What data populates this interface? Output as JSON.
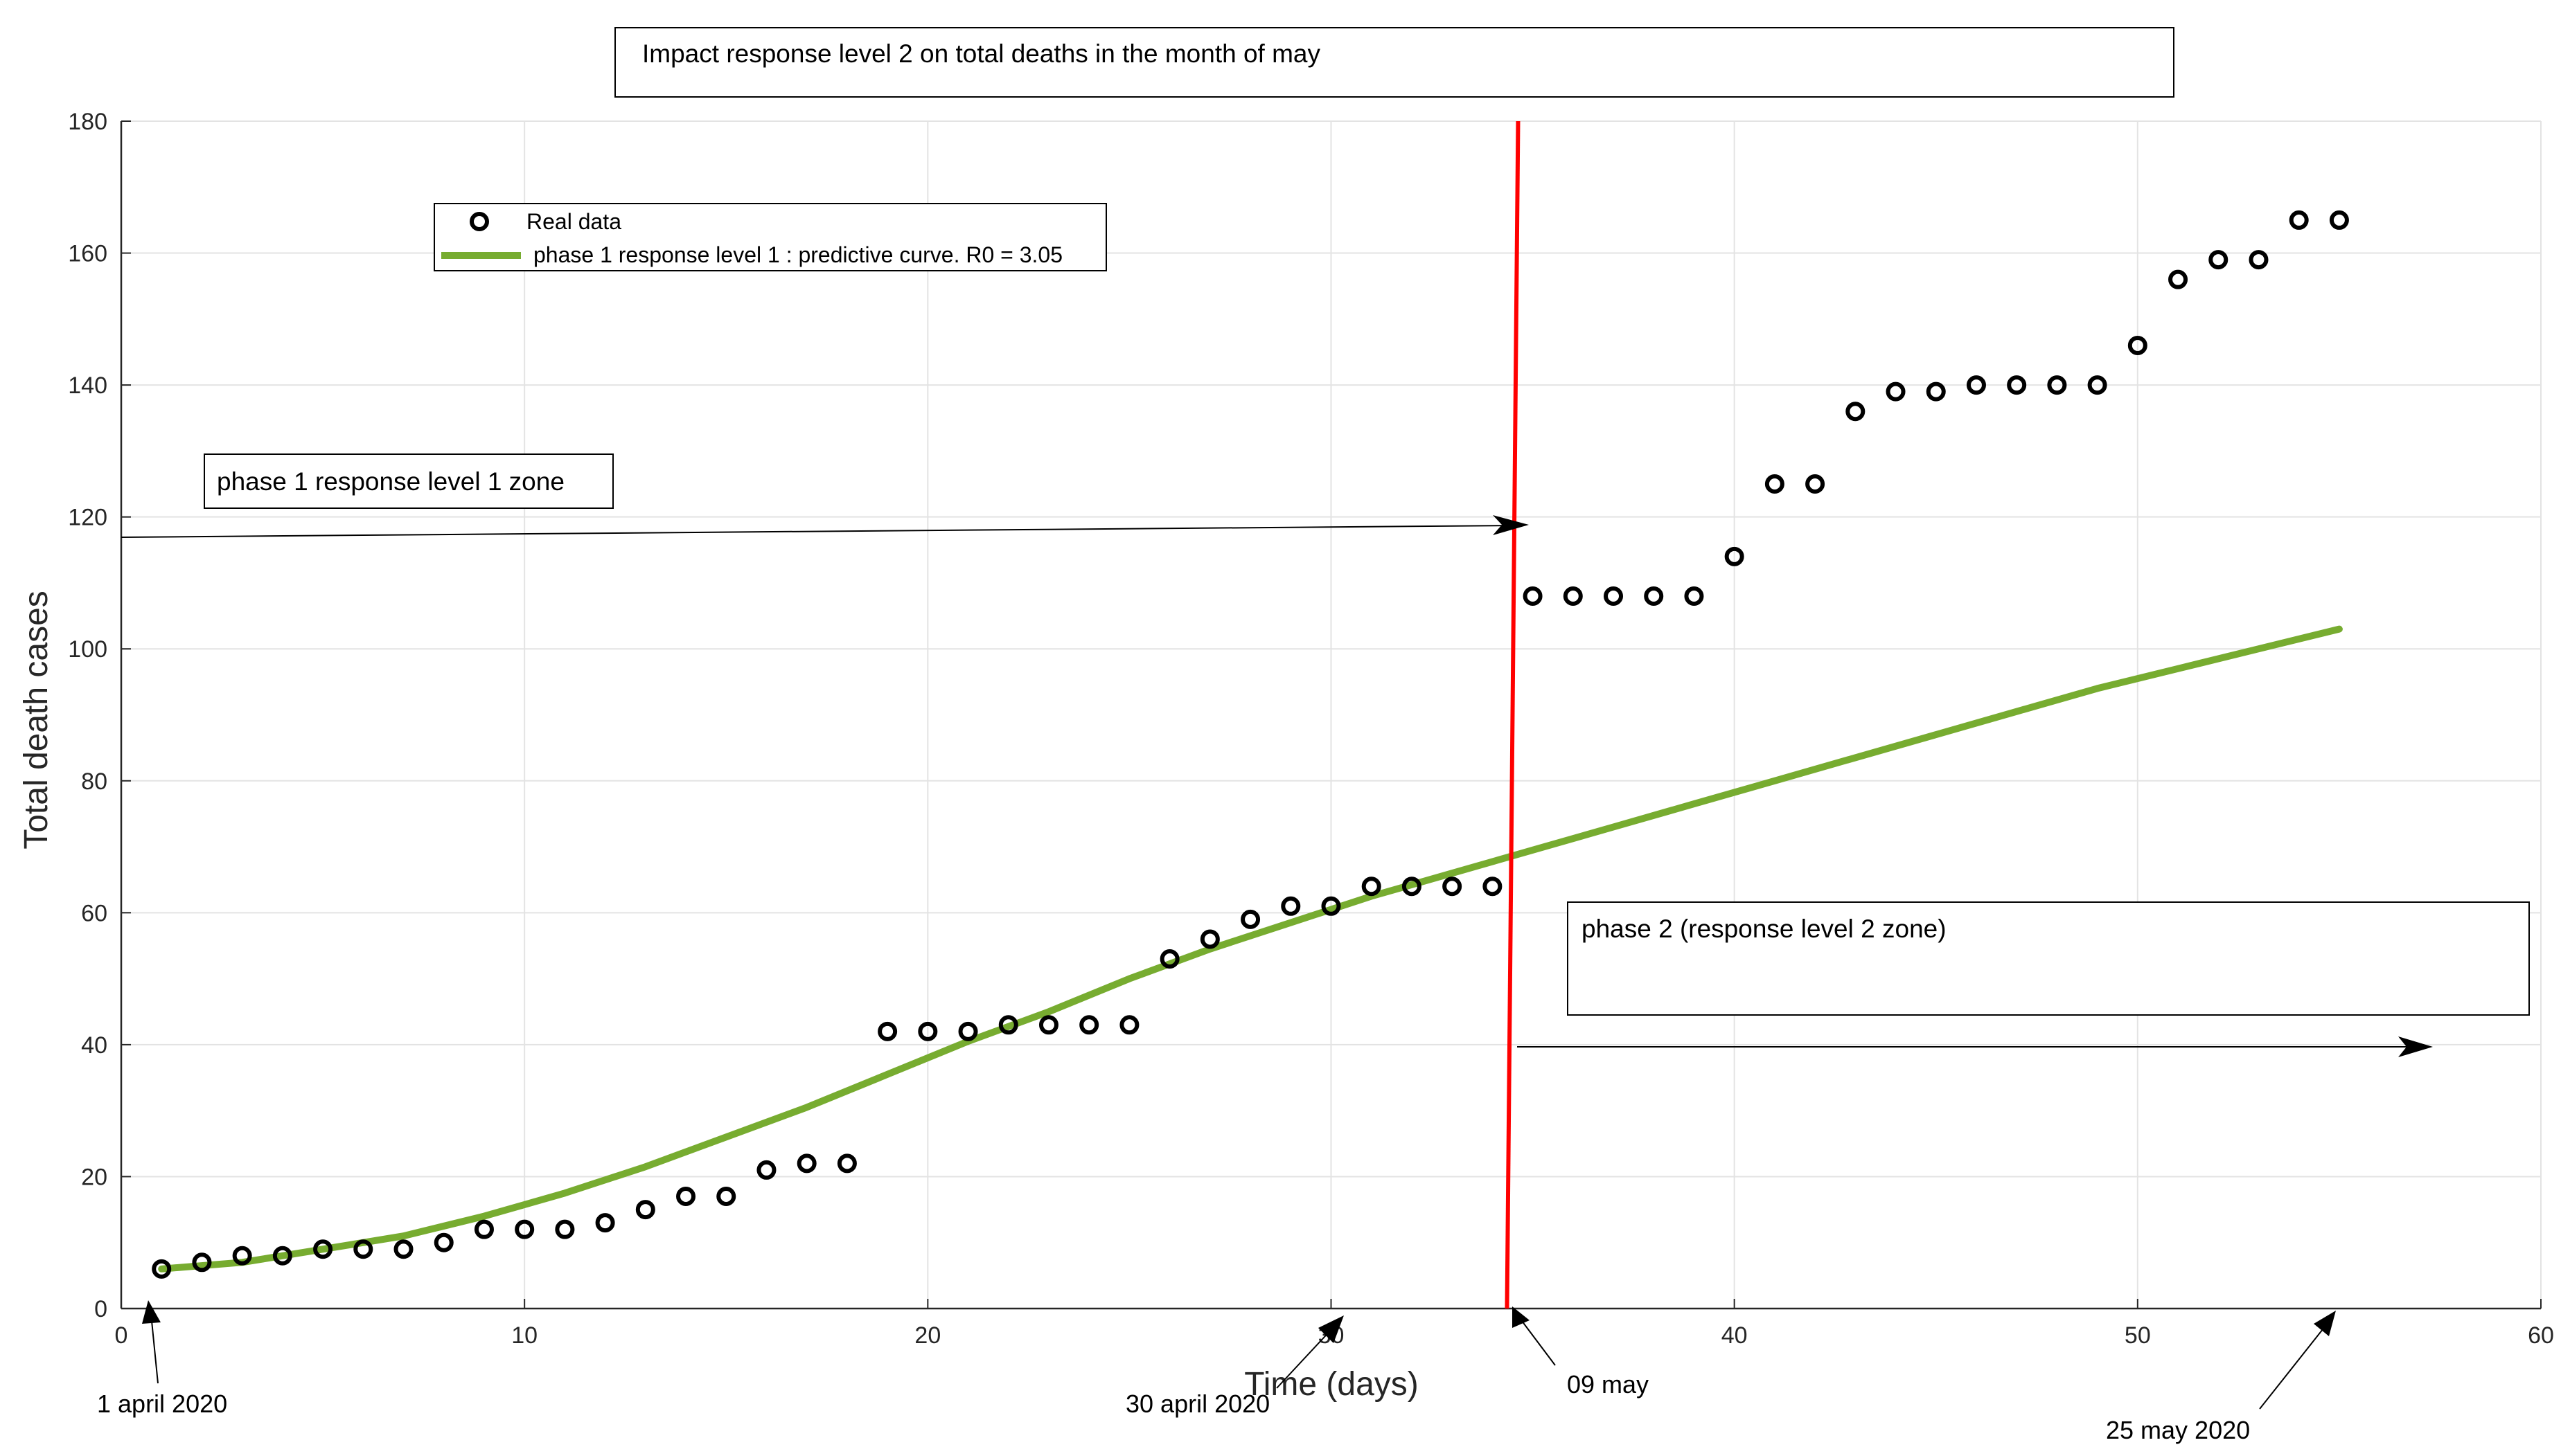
{
  "chart_data": {
    "type": "scatter",
    "title": "Impact response level 2 on total deaths in the month of may",
    "xlabel": "Time (days)",
    "ylabel": "Total death cases",
    "xlim": [
      0,
      60
    ],
    "ylim": [
      0,
      180
    ],
    "xticks": [
      "0",
      "10",
      "20",
      "30",
      "40",
      "50",
      "60"
    ],
    "yticks": [
      "0",
      "20",
      "40",
      "60",
      "80",
      "100",
      "120",
      "140",
      "160",
      "180"
    ],
    "grid": true,
    "legend_position": "top-left",
    "series": [
      {
        "name": "Real data",
        "kind": "scatter",
        "marker": "circle",
        "color": "#000000",
        "x": [
          1,
          2,
          3,
          4,
          5,
          6,
          7,
          8,
          9,
          10,
          11,
          12,
          13,
          14,
          15,
          16,
          17,
          18,
          19,
          20,
          21,
          22,
          23,
          24,
          25,
          26,
          27,
          28,
          29,
          30,
          31,
          32,
          33,
          34,
          35,
          36,
          37,
          38,
          39,
          40,
          41,
          42,
          43,
          44,
          45,
          46,
          47,
          48,
          49,
          50,
          51,
          52,
          53,
          54,
          55
        ],
        "y": [
          6,
          7,
          8,
          8,
          9,
          9,
          9,
          10,
          12,
          12,
          12,
          13,
          15,
          17,
          17,
          21,
          22,
          22,
          42,
          42,
          42,
          43,
          43,
          43,
          43,
          53,
          56,
          59,
          61,
          61,
          64,
          64,
          64,
          64,
          108,
          108,
          108,
          108,
          108,
          114,
          125,
          125,
          136,
          139,
          139,
          140,
          140,
          140,
          140,
          146,
          156,
          159,
          159,
          165,
          165
        ]
      },
      {
        "name": "phase 1 response level 1 : predictive curve. R0 = 3.05",
        "kind": "line",
        "color": "#77ac30",
        "x": [
          1,
          3,
          5,
          7,
          9,
          11,
          13,
          15,
          17,
          19,
          21,
          23,
          25,
          27,
          29,
          31,
          33,
          35,
          37,
          39,
          41,
          43,
          45,
          47,
          49,
          51,
          53,
          55
        ],
        "y": [
          6,
          7,
          9,
          11,
          14,
          17.5,
          21.5,
          26,
          30.5,
          35.5,
          40.5,
          45,
          50,
          54.5,
          58.5,
          62.5,
          66,
          69.5,
          73,
          76.5,
          80,
          83.5,
          87,
          90.5,
          94,
          97,
          100,
          103
        ]
      }
    ],
    "vline": {
      "x": 34.5,
      "color": "#ff0000"
    },
    "annotations": [
      {
        "text": "phase 1 response level 1 zone",
        "kind": "box"
      },
      {
        "text": "phase 2 (response level 2 zone)",
        "kind": "box"
      },
      {
        "text": "1 april 2020",
        "kind": "arrow",
        "x": 1,
        "y": 0
      },
      {
        "text": "30 april 2020",
        "kind": "arrow",
        "x": 30,
        "y": 0
      },
      {
        "text": "09 may",
        "kind": "arrow",
        "x": 34.5,
        "y": 0
      },
      {
        "text": "25 may 2020",
        "kind": "arrow",
        "x": 55,
        "y": 0
      }
    ],
    "colors": {
      "grid": "#e3e3e3",
      "axis": "#262626",
      "real_data": "#000000",
      "curve": "#77ac30",
      "vline": "#ff0000"
    }
  }
}
